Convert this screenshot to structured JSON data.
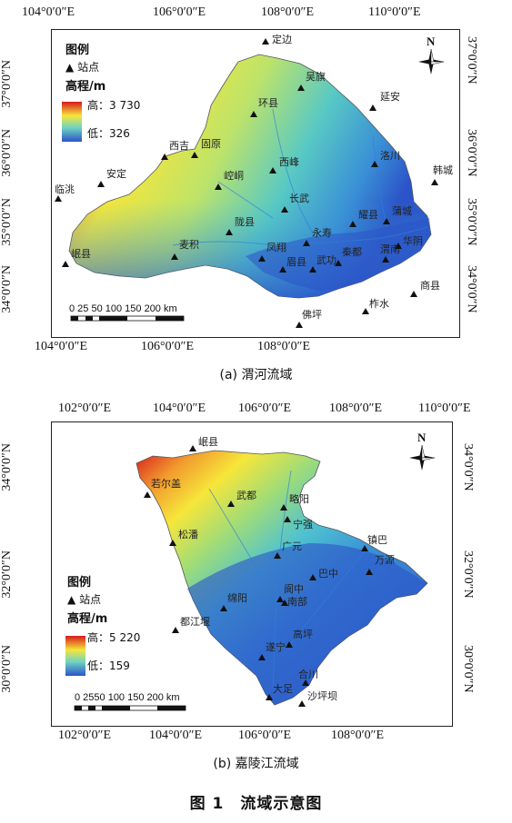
{
  "figure_caption": "图 1　流域示意图",
  "panel_a": {
    "caption": "(a)  渭河流域",
    "top_ticks": [
      "104°0′0″E",
      "106°0′0″E",
      "108°0′0″E",
      "110°0′0″E"
    ],
    "bottom_ticks": [
      "104°0′0″E",
      "106°0′0″E",
      "108°0′0″E"
    ],
    "left_ticks": [
      "37°0′0″N",
      "36°0′0″N",
      "35°0′0″N",
      "34°0′0″N"
    ],
    "right_ticks": [
      "37°0′0″N",
      "36°0′0″N",
      "35°0′0″N",
      "34°0′0″N"
    ],
    "legend_title": "图例",
    "legend_station": "站点",
    "legend_elev": "高程/m",
    "legend_high": "高：3 730",
    "legend_low": "低：326",
    "scalebar": "0 25 50    100    150   200 km",
    "stations": [
      "定边",
      "吴旗",
      "环县",
      "延安",
      "西吉",
      "固原",
      "西峰",
      "洛川",
      "韩城",
      "安定",
      "崆峒",
      "临洮",
      "长武",
      "耀县",
      "蒲城",
      "陇县",
      "永寿",
      "渭南",
      "华阴",
      "岷县",
      "麦积",
      "凤翔",
      "秦都",
      "眉县",
      "武功",
      "商县",
      "佛坪",
      "柞水"
    ]
  },
  "panel_b": {
    "caption": "(b)  嘉陵江流域",
    "top_ticks": [
      "102°0′0″E",
      "104°0′0″E",
      "106°0′0″E",
      "108°0′0″E",
      "110°0′0″E"
    ],
    "bottom_ticks": [
      "102°0′0″E",
      "104°0′0″E",
      "106°0′0″E",
      "108°0′0″E"
    ],
    "left_ticks": [
      "34°0′0″N",
      "32°0′0″N",
      "30°0′0″N"
    ],
    "right_ticks": [
      "34°0′0″N",
      "32°0′0″N",
      "30°0′0″N"
    ],
    "legend_title": "图例",
    "legend_station": "站点",
    "legend_elev": "高程/m",
    "legend_high": "高：5 220",
    "legend_low": "低：159",
    "scalebar": "0 2550   100   150  200 km",
    "stations": [
      "岷县",
      "若尔盖",
      "武都",
      "略阳",
      "宁强",
      "松潘",
      "广元",
      "镇巴",
      "万源",
      "巴中",
      "阆中",
      "南部",
      "绵阳",
      "都江堰",
      "高坪",
      "遂宁",
      "合川",
      "大足",
      "沙坪坝"
    ]
  },
  "colors": {
    "high": "#d7191c",
    "mid": "#f6f43a",
    "low2": "#3fbfd8",
    "low": "#2b54c8",
    "frame": "#222222"
  },
  "icons": [
    "north-arrow-icon",
    "station-triangle-icon"
  ]
}
